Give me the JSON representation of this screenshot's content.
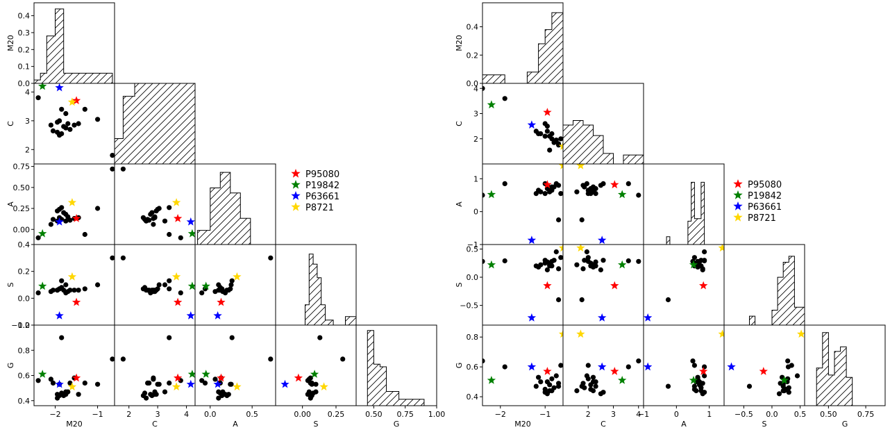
{
  "chart_data": [
    {
      "type": "scatter",
      "title": "",
      "variables": [
        "M20",
        "C",
        "A",
        "S",
        "G"
      ],
      "ranges": {
        "M20": [
          -2.5,
          -0.6
        ],
        "C": [
          1.5,
          4.3
        ],
        "A": [
          -0.18,
          0.78
        ],
        "S": [
          -0.2,
          0.4
        ],
        "G": [
          0.36,
          1.0
        ]
      },
      "ticks": {
        "M20": [
          -2,
          -1
        ],
        "C": [
          2,
          3,
          4
        ],
        "A": [
          0.0,
          0.5
        ],
        "S": [
          0.0,
          0.25
        ],
        "G": [
          0.5,
          0.75,
          1.0
        ]
      },
      "row_ticks": {
        "M20_hist": [
          "0.0",
          "0.1",
          "0.2",
          "0.3",
          "0.4"
        ],
        "C": [
          "2",
          "3",
          "4"
        ],
        "A": [
          "0.00",
          "0.25",
          "0.50",
          "0.75"
        ],
        "S": [
          "−0.2",
          "0.0",
          "0.2",
          "0.4"
        ],
        "G": [
          "0.4",
          "0.6",
          "0.8",
          "1.0"
        ]
      },
      "x_tick_labels": {
        "M20": [
          "−2",
          "−1"
        ],
        "C": [
          "2",
          "3",
          "4"
        ],
        "A": [
          "0.0",
          "0.5"
        ],
        "S": [
          "0.00",
          "0.25"
        ],
        "G": [
          "0.50",
          "0.75",
          "1.00"
        ]
      },
      "hist_ylim": [
        0,
        0.46
      ],
      "histograms": {
        "M20": {
          "edges": [
            -2.5,
            -2.35,
            -2.2,
            -2.0,
            -1.8,
            -1.6,
            -1.3,
            -1.0,
            -0.65
          ],
          "heights": [
            0.02,
            0.06,
            0.28,
            0.44,
            0.06,
            0.06,
            0.06,
            0.06
          ]
        },
        "C": {
          "edges": [
            1.5,
            1.8,
            2.2,
            2.6,
            3.0,
            3.3,
            3.6,
            3.9,
            4.3
          ],
          "heights": [
            0.15,
            0.4,
            1.4,
            2.05,
            2.5,
            1.85,
            1.15,
            0.5
          ]
        },
        "A": {
          "edges": [
            -0.15,
            0.0,
            0.12,
            0.24,
            0.36,
            0.48,
            0.6,
            0.72
          ],
          "heights": [
            0.2,
            0.8,
            1.02,
            0.73,
            0.37,
            0.0,
            0.0
          ]
        },
        "S": {
          "edges": [
            -0.2,
            0.02,
            0.05,
            0.08,
            0.11,
            0.14,
            0.17,
            0.2,
            0.23,
            0.26,
            0.29,
            0.32,
            0.4
          ],
          "heights": [
            0,
            0.6,
            2.1,
            1.8,
            1.4,
            0.6,
            0.15,
            0.15,
            0.0,
            0.0,
            0.0,
            0.25
          ]
        },
        "G": {
          "edges": [
            0.4,
            0.45,
            0.5,
            0.55,
            0.6,
            0.65,
            0.7,
            0.8,
            0.9
          ],
          "heights": [
            0,
            2.9,
            1.6,
            1.5,
            0.55,
            0.55,
            0.25,
            0.25
          ]
        }
      },
      "hist_scale": [
        0.46,
        0.46,
        1.1,
        2.3,
        3.0
      ],
      "points": [
        [
          -2.1,
          2.85,
          0.06,
          0.05,
          0.57
        ],
        [
          -1.95,
          2.6,
          0.1,
          0.06,
          0.42
        ],
        [
          -1.9,
          2.5,
          0.14,
          0.07,
          0.44
        ],
        [
          -1.85,
          2.55,
          0.12,
          0.08,
          0.46
        ],
        [
          -1.75,
          2.75,
          0.18,
          0.04,
          0.45
        ],
        [
          -1.8,
          2.8,
          0.2,
          0.06,
          0.44
        ],
        [
          -1.7,
          2.9,
          0.15,
          0.05,
          0.47
        ],
        [
          -1.65,
          2.7,
          0.11,
          0.06,
          0.54
        ],
        [
          -1.9,
          3.0,
          0.24,
          0.07,
          0.53
        ],
        [
          -1.95,
          2.95,
          0.22,
          0.06,
          0.45
        ],
        [
          -1.85,
          3.4,
          0.26,
          0.13,
          0.9
        ],
        [
          -1.75,
          3.25,
          0.1,
          0.1,
          0.47
        ],
        [
          -2.4,
          3.8,
          -0.1,
          0.04,
          0.56
        ],
        [
          -1.3,
          3.4,
          -0.06,
          0.07,
          0.54
        ],
        [
          -1.0,
          3.05,
          0.25,
          0.1,
          0.53
        ],
        [
          -1.55,
          2.85,
          0.13,
          0.06,
          0.58
        ],
        [
          -1.45,
          2.9,
          0.14,
          0.06,
          0.45
        ],
        [
          -0.65,
          1.8,
          0.72,
          0.3,
          0.73
        ],
        [
          -2.05,
          2.65,
          0.12,
          0.06,
          0.54
        ]
      ],
      "stars": [
        {
          "label": "P95080",
          "color": "#ff0000",
          "M20": -1.5,
          "C": 3.7,
          "A": 0.13,
          "S": -0.03,
          "G": 0.58
        },
        {
          "label": "P19842",
          "color": "#008000",
          "M20": -2.3,
          "C": 4.2,
          "A": -0.05,
          "S": 0.09,
          "G": 0.61
        },
        {
          "label": "P63661",
          "color": "#0000ff",
          "M20": -1.9,
          "C": 4.15,
          "A": 0.09,
          "S": -0.13,
          "G": 0.53
        },
        {
          "label": "P8721",
          "color": "#ffd700",
          "M20": -1.6,
          "C": 3.65,
          "A": 0.32,
          "S": 0.16,
          "G": 0.51
        }
      ]
    },
    {
      "type": "scatter",
      "title": "",
      "variables": [
        "M20",
        "C",
        "A",
        "S",
        "G"
      ],
      "ranges": {
        "M20": [
          -2.4,
          -0.6
        ],
        "C": [
          1.0,
          4.2
        ],
        "A": [
          -1.0,
          1.45
        ],
        "S": [
          -0.85,
          0.58
        ],
        "G": [
          0.34,
          0.88
        ]
      },
      "row_ticks": {
        "M20_hist": [
          "0.0",
          "0.2",
          "0.4"
        ],
        "C": [
          "2",
          "3",
          "4"
        ],
        "A": [
          "−1",
          "0",
          "1"
        ],
        "S": [
          "−0.5",
          "0.0",
          "0.5"
        ],
        "G": [
          "0.4",
          "0.6",
          "0.8"
        ]
      },
      "ticks": {
        "M20": [
          -2,
          -1
        ],
        "C": [
          2,
          3,
          4
        ],
        "A": [
          -1,
          0,
          1
        ],
        "S": [
          -0.5,
          0.0,
          0.5
        ],
        "G": [
          0.5,
          0.75
        ]
      },
      "x_tick_labels": {
        "M20": [
          "−2",
          "−1"
        ],
        "C": [
          "2",
          "3",
          "4"
        ],
        "A": [
          "−1",
          "0",
          "1"
        ],
        "S": [
          "−0.5",
          "0.0",
          "0.5"
        ],
        "G": [
          "0.50",
          "0.75"
        ]
      },
      "hist_ylim": [
        0,
        0.55
      ],
      "histograms": {
        "M20": {
          "edges": [
            -2.4,
            -2.15,
            -1.9,
            -1.65,
            -1.4,
            -1.15,
            -1.0,
            -0.85,
            -0.6
          ],
          "heights": [
            0.06,
            0.06,
            0.0,
            0.0,
            0.08,
            0.28,
            0.38,
            0.5
          ]
        },
        "C": {
          "edges": [
            1.0,
            1.4,
            1.8,
            2.2,
            2.6,
            3.0,
            3.4,
            3.8,
            4.2
          ],
          "heights": [
            1.3,
            1.45,
            1.3,
            0.95,
            0.35,
            0.0,
            0.3,
            0.3
          ]
        },
        "A": {
          "edges": [
            -1.0,
            -0.3,
            -0.2,
            0.2,
            0.35,
            0.45,
            0.55,
            0.65,
            0.75,
            0.85,
            0.95,
            1.45
          ],
          "heights": [
            0,
            0.3,
            0,
            0,
            0.9,
            2.4,
            1.0,
            1.0,
            2.4,
            0,
            0
          ]
        },
        "S": {
          "edges": [
            -0.85,
            -0.5,
            -0.4,
            -0.3,
            -0.2,
            -0.1,
            0.0,
            0.1,
            0.2,
            0.3,
            0.4,
            0.58
          ],
          "heights": [
            0,
            0,
            0.3,
            0,
            0,
            0,
            0.5,
            1.6,
            2.1,
            2.3,
            0.6
          ]
        },
        "G": {
          "edges": [
            0.34,
            0.42,
            0.46,
            0.5,
            0.54,
            0.58,
            0.62,
            0.66,
            0.88
          ],
          "heights": [
            0,
            1.6,
            3.1,
            1.3,
            2.3,
            2.5,
            1.2,
            0
          ]
        }
      },
      "hist_scale": [
        0.55,
        2.6,
        3.0,
        2.6,
        3.3
      ],
      "points": [
        [
          -2.4,
          4.0,
          0.5,
          0.28,
          0.64
        ],
        [
          -1.9,
          3.6,
          0.85,
          0.29,
          0.6
        ],
        [
          -1.2,
          2.3,
          0.55,
          0.2,
          0.47
        ],
        [
          -1.1,
          2.2,
          0.6,
          0.22,
          0.5
        ],
        [
          -1.0,
          2.1,
          0.55,
          0.25,
          0.45
        ],
        [
          -0.95,
          2.5,
          0.8,
          0.13,
          0.42
        ],
        [
          -0.9,
          2.1,
          0.7,
          0.2,
          0.48
        ],
        [
          -0.85,
          2.0,
          0.65,
          0.28,
          0.52
        ],
        [
          -0.8,
          1.85,
          0.75,
          0.3,
          0.46
        ],
        [
          -0.9,
          1.55,
          0.6,
          0.22,
          0.44
        ],
        [
          -0.75,
          1.95,
          0.85,
          0.45,
          0.54
        ],
        [
          -0.7,
          1.8,
          0.8,
          0.15,
          0.49
        ],
        [
          -0.7,
          1.75,
          -0.25,
          -0.4,
          0.47
        ],
        [
          -0.65,
          2.0,
          0.55,
          0.35,
          0.61
        ],
        [
          -1.0,
          2.6,
          0.85,
          0.3,
          0.43
        ],
        [
          -1.15,
          2.2,
          0.65,
          0.18,
          0.53
        ],
        [
          -0.95,
          2.3,
          0.7,
          0.27,
          0.5
        ],
        [
          -0.85,
          2.2,
          0.75,
          0.2,
          0.44
        ]
      ],
      "stars": [
        {
          "label": "P95080",
          "color": "#ff0000",
          "M20": -0.95,
          "C": 3.05,
          "A": 0.82,
          "S": -0.15,
          "G": 0.57
        },
        {
          "label": "P19842",
          "color": "#008000",
          "M20": -2.2,
          "C": 3.35,
          "A": 0.52,
          "S": 0.22,
          "G": 0.51
        },
        {
          "label": "P63661",
          "color": "#0000ff",
          "M20": -1.3,
          "C": 2.55,
          "A": -0.87,
          "S": -0.72,
          "G": 0.6
        },
        {
          "label": "P8721",
          "color": "#ffd700",
          "M20": -0.6,
          "C": 1.7,
          "A": 1.4,
          "S": 0.52,
          "G": 0.82
        }
      ]
    }
  ],
  "legend": {
    "items": [
      "P95080",
      "P19842",
      "P63661",
      "P8721"
    ]
  }
}
